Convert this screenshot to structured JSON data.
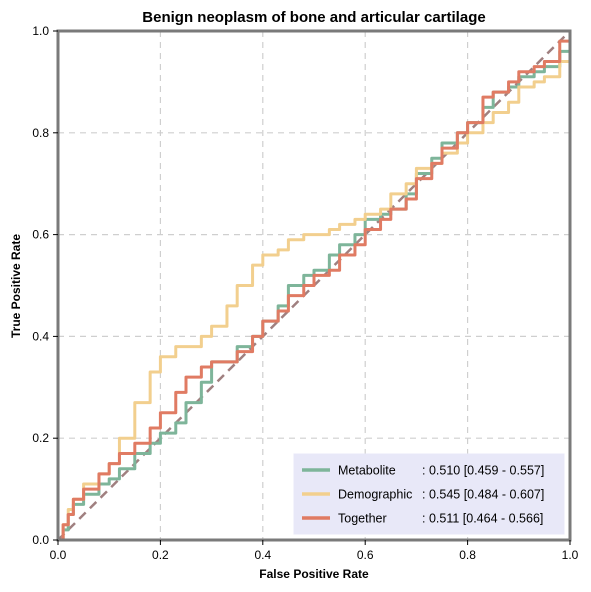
{
  "chart_data": {
    "type": "line",
    "title": "Benign neoplasm of bone and articular cartilage",
    "xlabel": "False Positive Rate",
    "ylabel": "True Positive Rate",
    "xlim": [
      0,
      1
    ],
    "ylim": [
      0,
      1
    ],
    "xticks": [
      "0.0",
      "0.2",
      "0.4",
      "0.6",
      "0.8",
      "1.0"
    ],
    "yticks": [
      "0.0",
      "0.2",
      "0.4",
      "0.6",
      "0.8",
      "1.0"
    ],
    "grid": true,
    "legend_position": "bottom-right",
    "diagonal": {
      "color": "#a08080",
      "style": "dashed"
    },
    "series": [
      {
        "name": "Metabolite",
        "legend_name": "Metabolite     ",
        "legend_score": ": 0.510 [0.459 - 0.557]",
        "color": "#7eb59a",
        "x": [
          0,
          0.01,
          0.02,
          0.03,
          0.05,
          0.08,
          0.1,
          0.12,
          0.15,
          0.18,
          0.2,
          0.23,
          0.25,
          0.28,
          0.3,
          0.33,
          0.35,
          0.38,
          0.4,
          0.43,
          0.45,
          0.48,
          0.5,
          0.53,
          0.55,
          0.58,
          0.6,
          0.63,
          0.65,
          0.68,
          0.7,
          0.73,
          0.75,
          0.78,
          0.8,
          0.83,
          0.85,
          0.88,
          0.9,
          0.93,
          0.95,
          0.98,
          1.0
        ],
        "y": [
          0,
          0.02,
          0.05,
          0.07,
          0.09,
          0.11,
          0.12,
          0.14,
          0.17,
          0.19,
          0.21,
          0.23,
          0.27,
          0.31,
          0.35,
          0.35,
          0.38,
          0.4,
          0.43,
          0.46,
          0.5,
          0.52,
          0.53,
          0.56,
          0.58,
          0.6,
          0.63,
          0.64,
          0.65,
          0.68,
          0.72,
          0.75,
          0.78,
          0.8,
          0.82,
          0.85,
          0.88,
          0.89,
          0.91,
          0.92,
          0.93,
          0.96,
          1.0
        ]
      },
      {
        "name": "Demographic",
        "legend_name": "Demographic",
        "legend_score": ": 0.545 [0.484 - 0.607]",
        "color": "#f2cf8e",
        "x": [
          0,
          0.01,
          0.02,
          0.03,
          0.05,
          0.08,
          0.1,
          0.12,
          0.15,
          0.18,
          0.2,
          0.23,
          0.25,
          0.28,
          0.3,
          0.33,
          0.35,
          0.38,
          0.4,
          0.43,
          0.45,
          0.48,
          0.5,
          0.53,
          0.55,
          0.58,
          0.6,
          0.63,
          0.65,
          0.68,
          0.7,
          0.73,
          0.75,
          0.78,
          0.8,
          0.83,
          0.85,
          0.88,
          0.9,
          0.93,
          0.95,
          0.98,
          1.0
        ],
        "y": [
          0,
          0.03,
          0.06,
          0.08,
          0.11,
          0.13,
          0.15,
          0.2,
          0.27,
          0.33,
          0.36,
          0.38,
          0.38,
          0.4,
          0.42,
          0.46,
          0.5,
          0.54,
          0.56,
          0.57,
          0.59,
          0.6,
          0.6,
          0.61,
          0.62,
          0.63,
          0.64,
          0.65,
          0.68,
          0.7,
          0.73,
          0.74,
          0.76,
          0.78,
          0.8,
          0.82,
          0.84,
          0.86,
          0.89,
          0.9,
          0.91,
          0.94,
          1.0
        ]
      },
      {
        "name": "Together",
        "legend_name": "Together       ",
        "legend_score": ": 0.511 [0.464 - 0.566]",
        "color": "#e07b63",
        "x": [
          0,
          0.01,
          0.02,
          0.03,
          0.05,
          0.08,
          0.1,
          0.12,
          0.15,
          0.18,
          0.2,
          0.23,
          0.25,
          0.28,
          0.3,
          0.33,
          0.35,
          0.38,
          0.4,
          0.43,
          0.45,
          0.48,
          0.5,
          0.53,
          0.55,
          0.58,
          0.6,
          0.63,
          0.65,
          0.68,
          0.7,
          0.73,
          0.75,
          0.78,
          0.8,
          0.83,
          0.85,
          0.88,
          0.9,
          0.93,
          0.95,
          0.98,
          1.0
        ],
        "y": [
          0,
          0.03,
          0.05,
          0.08,
          0.1,
          0.13,
          0.15,
          0.17,
          0.19,
          0.22,
          0.25,
          0.29,
          0.32,
          0.34,
          0.35,
          0.35,
          0.37,
          0.4,
          0.43,
          0.45,
          0.48,
          0.5,
          0.52,
          0.53,
          0.56,
          0.58,
          0.61,
          0.63,
          0.65,
          0.67,
          0.71,
          0.74,
          0.77,
          0.8,
          0.82,
          0.87,
          0.88,
          0.9,
          0.92,
          0.93,
          0.94,
          0.98,
          1.0
        ]
      }
    ]
  }
}
